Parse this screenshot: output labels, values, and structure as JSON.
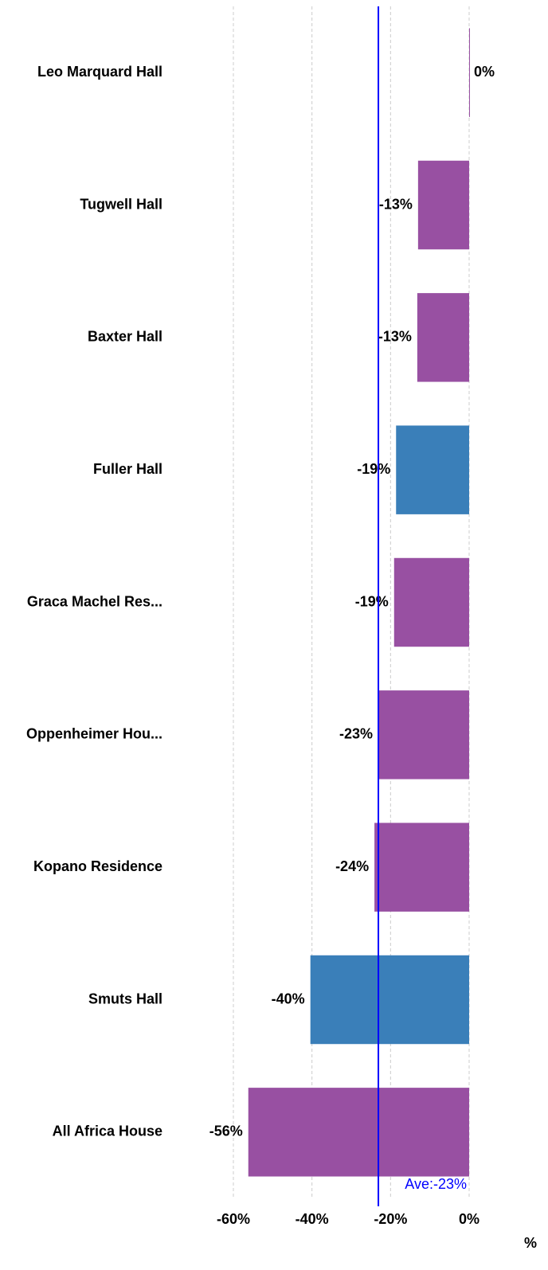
{
  "chart_data": {
    "type": "hbar",
    "categories": [
      "Leo Marquard Hall",
      "Tugwell Hall",
      "Baxter Hall",
      "Fuller Hall",
      "Graca Machel Res...",
      "Oppenheimer Hou...",
      "Kopano Residence",
      "Smuts Hall",
      "All Africa House"
    ],
    "values": [
      0,
      -13,
      -13.2,
      -18.6,
      -19.1,
      -23.1,
      -24.1,
      -40.4,
      -56.2
    ],
    "value_labels": [
      "0%",
      "-13%",
      "-13%",
      "-19%",
      "-19%",
      "-23%",
      "-24%",
      "-40%",
      "-56%"
    ],
    "colors": [
      "#9850a2",
      "#9850a2",
      "#9850a2",
      "#3a7fb9",
      "#9850a2",
      "#9850a2",
      "#9850a2",
      "#3a7fb9",
      "#9850a2"
    ],
    "xlim": [
      -60,
      0
    ],
    "xticks": [
      {
        "value": -60,
        "label": "-60%"
      },
      {
        "value": -40,
        "label": "-40%"
      },
      {
        "value": -20,
        "label": "-20%"
      },
      {
        "value": 0,
        "label": "0%"
      }
    ],
    "grid": true,
    "average": {
      "value": -23.1,
      "label": "Ave:-23%",
      "color": "#0000ff"
    },
    "x_label": "%"
  }
}
